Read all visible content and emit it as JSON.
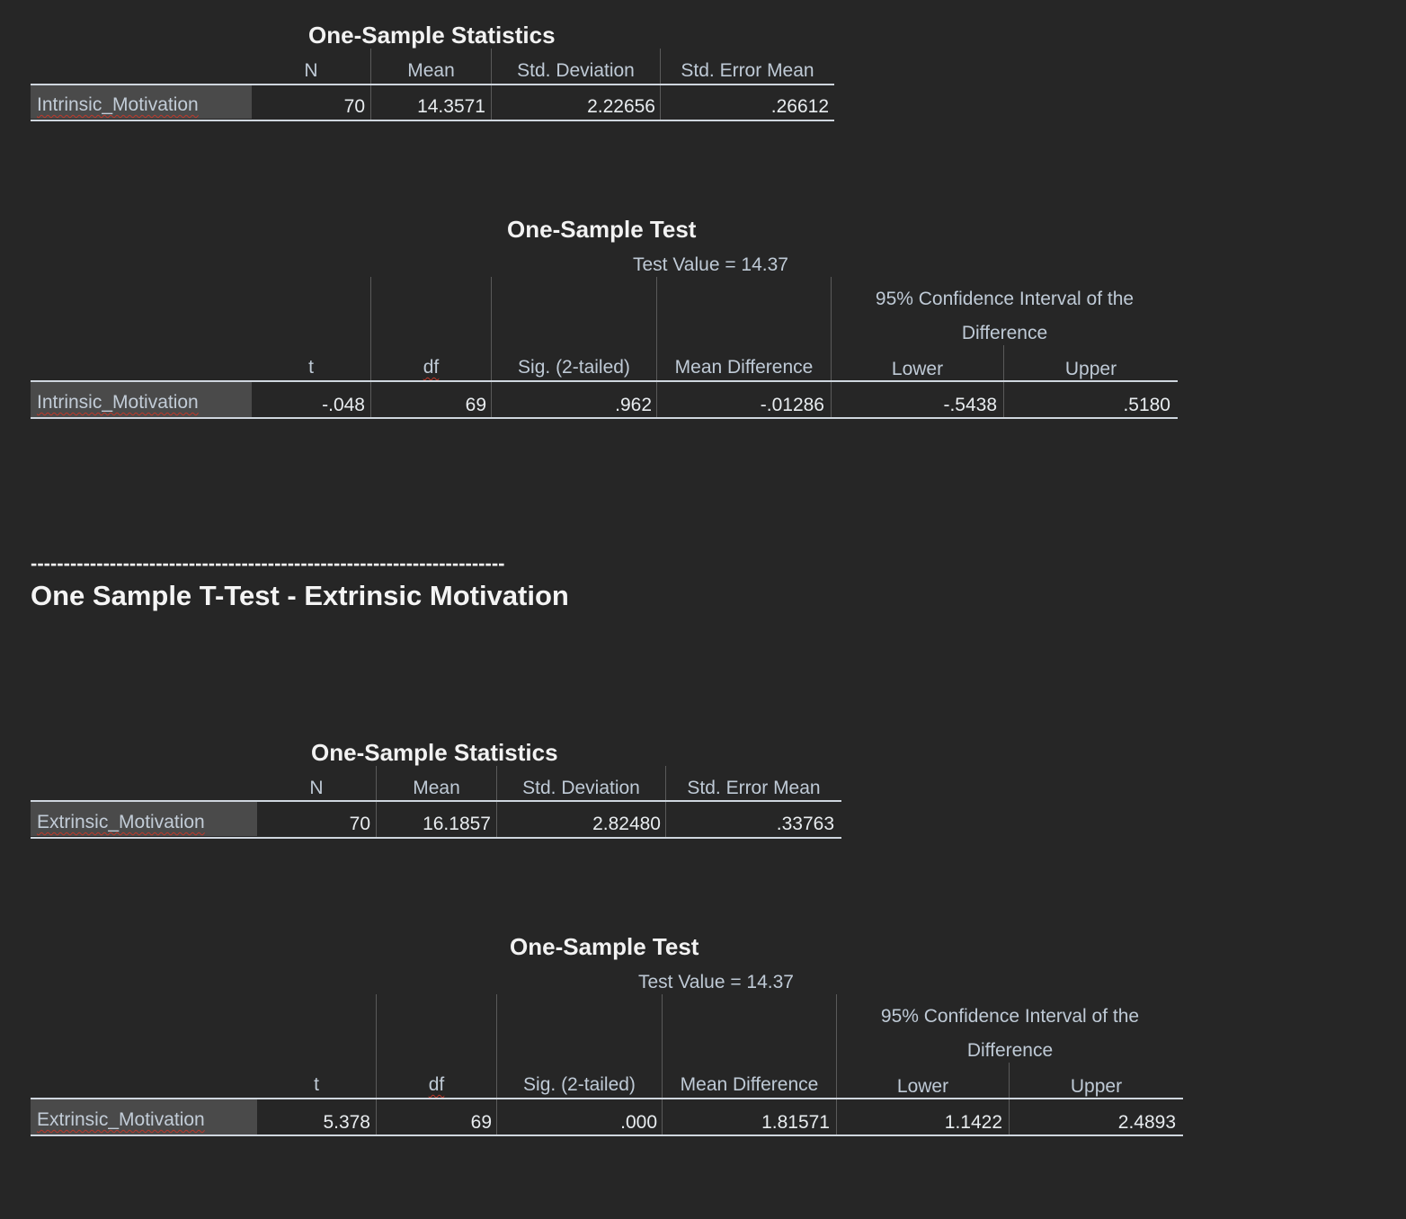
{
  "intrinsic": {
    "stats": {
      "title": "One-Sample Statistics",
      "headers": [
        "N",
        "Mean",
        "Std. Deviation",
        "Std. Error Mean"
      ],
      "row_label": "Intrinsic_Motivation",
      "values": [
        "70",
        "14.3571",
        "2.22656",
        ".26612"
      ]
    },
    "test": {
      "title": "One-Sample Test",
      "test_value": "Test Value = 14.37",
      "ci_header_line1": "95% Confidence Interval of the",
      "ci_header_line2": "Difference",
      "headers": [
        "t",
        "df",
        "Sig. (2-tailed)",
        "Mean Difference",
        "Lower",
        "Upper"
      ],
      "row_label": "Intrinsic_Motivation",
      "values": [
        "-.048",
        "69",
        ".962",
        "-.01286",
        "-.5438",
        ".5180"
      ]
    }
  },
  "separator": "------------------------------------------------------------------------",
  "section_title": "One Sample T-Test - Extrinsic Motivation",
  "extrinsic": {
    "stats": {
      "title": "One-Sample Statistics",
      "headers": [
        "N",
        "Mean",
        "Std. Deviation",
        "Std. Error Mean"
      ],
      "row_label": "Extrinsic_Motivation",
      "values": [
        "70",
        "16.1857",
        "2.82480",
        ".33763"
      ]
    },
    "test": {
      "title": "One-Sample Test",
      "test_value": "Test Value = 14.37",
      "ci_header_line1": "95% Confidence Interval of the",
      "ci_header_line2": "Difference",
      "headers": [
        "t",
        "df",
        "Sig. (2-tailed)",
        "Mean Difference",
        "Lower",
        "Upper"
      ],
      "row_label": "Extrinsic_Motivation",
      "values": [
        "5.378",
        "69",
        ".000",
        "1.81571",
        "1.1422",
        "2.4893"
      ]
    }
  }
}
